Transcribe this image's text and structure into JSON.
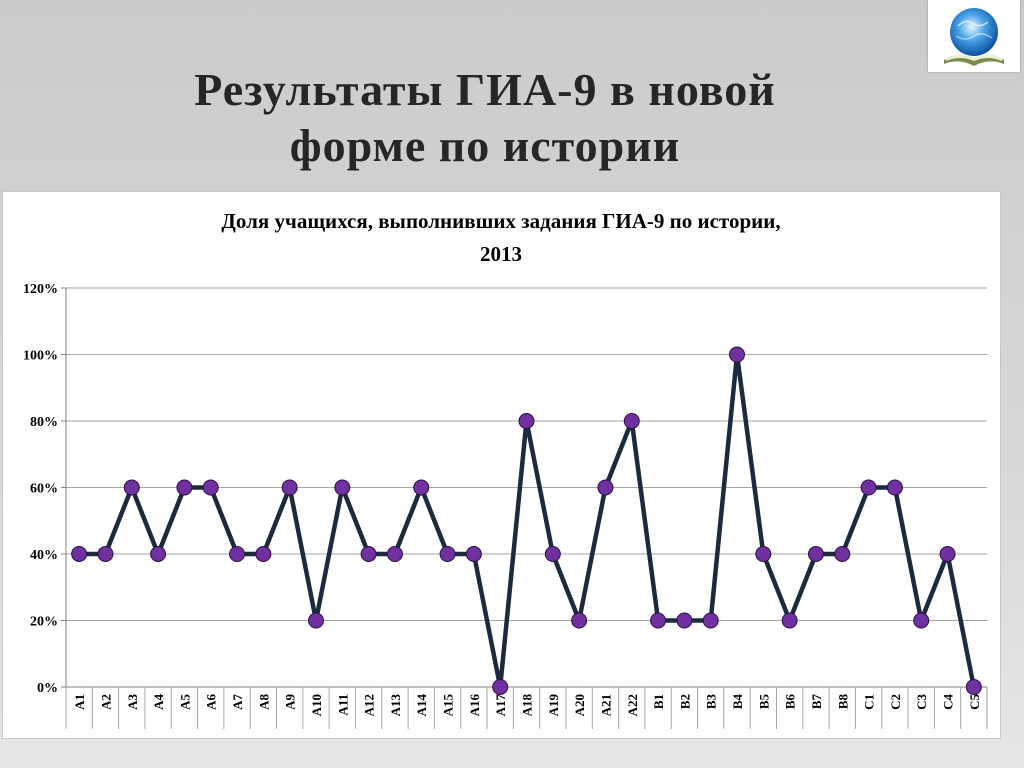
{
  "slide": {
    "title_line1": "Результаты ГИА-9 в новой",
    "title_line2": "форме по истории"
  },
  "colors": {
    "line": "#1b2a3d",
    "marker_fill": "#7030a0",
    "marker_stroke": "#2a0f45",
    "grid": "#a6a6a6"
  },
  "chart_data": {
    "type": "line",
    "title": "Доля учащихся, выполнивших задания ГИА-9 по истории, 2013",
    "title_line1": "Доля учащихся, выполнивших задания ГИА-9 по истории,",
    "title_line2": "2013",
    "categories": [
      "А1",
      "А2",
      "А3",
      "А4",
      "А5",
      "А6",
      "А7",
      "А8",
      "А9",
      "А10",
      "А11",
      "А12",
      "А13",
      "А14",
      "А15",
      "А16",
      "А17",
      "А18",
      "А19",
      "А20",
      "А21",
      "А22",
      "В1",
      "В2",
      "В3",
      "В4",
      "В5",
      "В6",
      "В7",
      "В8",
      "С1",
      "С2",
      "С3",
      "С4",
      "С5"
    ],
    "series": [
      {
        "values": [
          40,
          40,
          60,
          40,
          60,
          60,
          40,
          40,
          60,
          20,
          60,
          40,
          40,
          60,
          40,
          40,
          0,
          80,
          40,
          20,
          60,
          80,
          20,
          20,
          20,
          100,
          40,
          20,
          40,
          40,
          60,
          60,
          20,
          40,
          0
        ]
      }
    ],
    "ylim": [
      0,
      120
    ],
    "yticks": [
      0,
      20,
      40,
      60,
      80,
      100,
      120
    ],
    "ytick_labels": [
      "0%",
      "20%",
      "40%",
      "60%",
      "80%",
      "100%",
      "120%"
    ],
    "xlabel": "",
    "ylabel": "",
    "grid": true,
    "legend": "none"
  }
}
